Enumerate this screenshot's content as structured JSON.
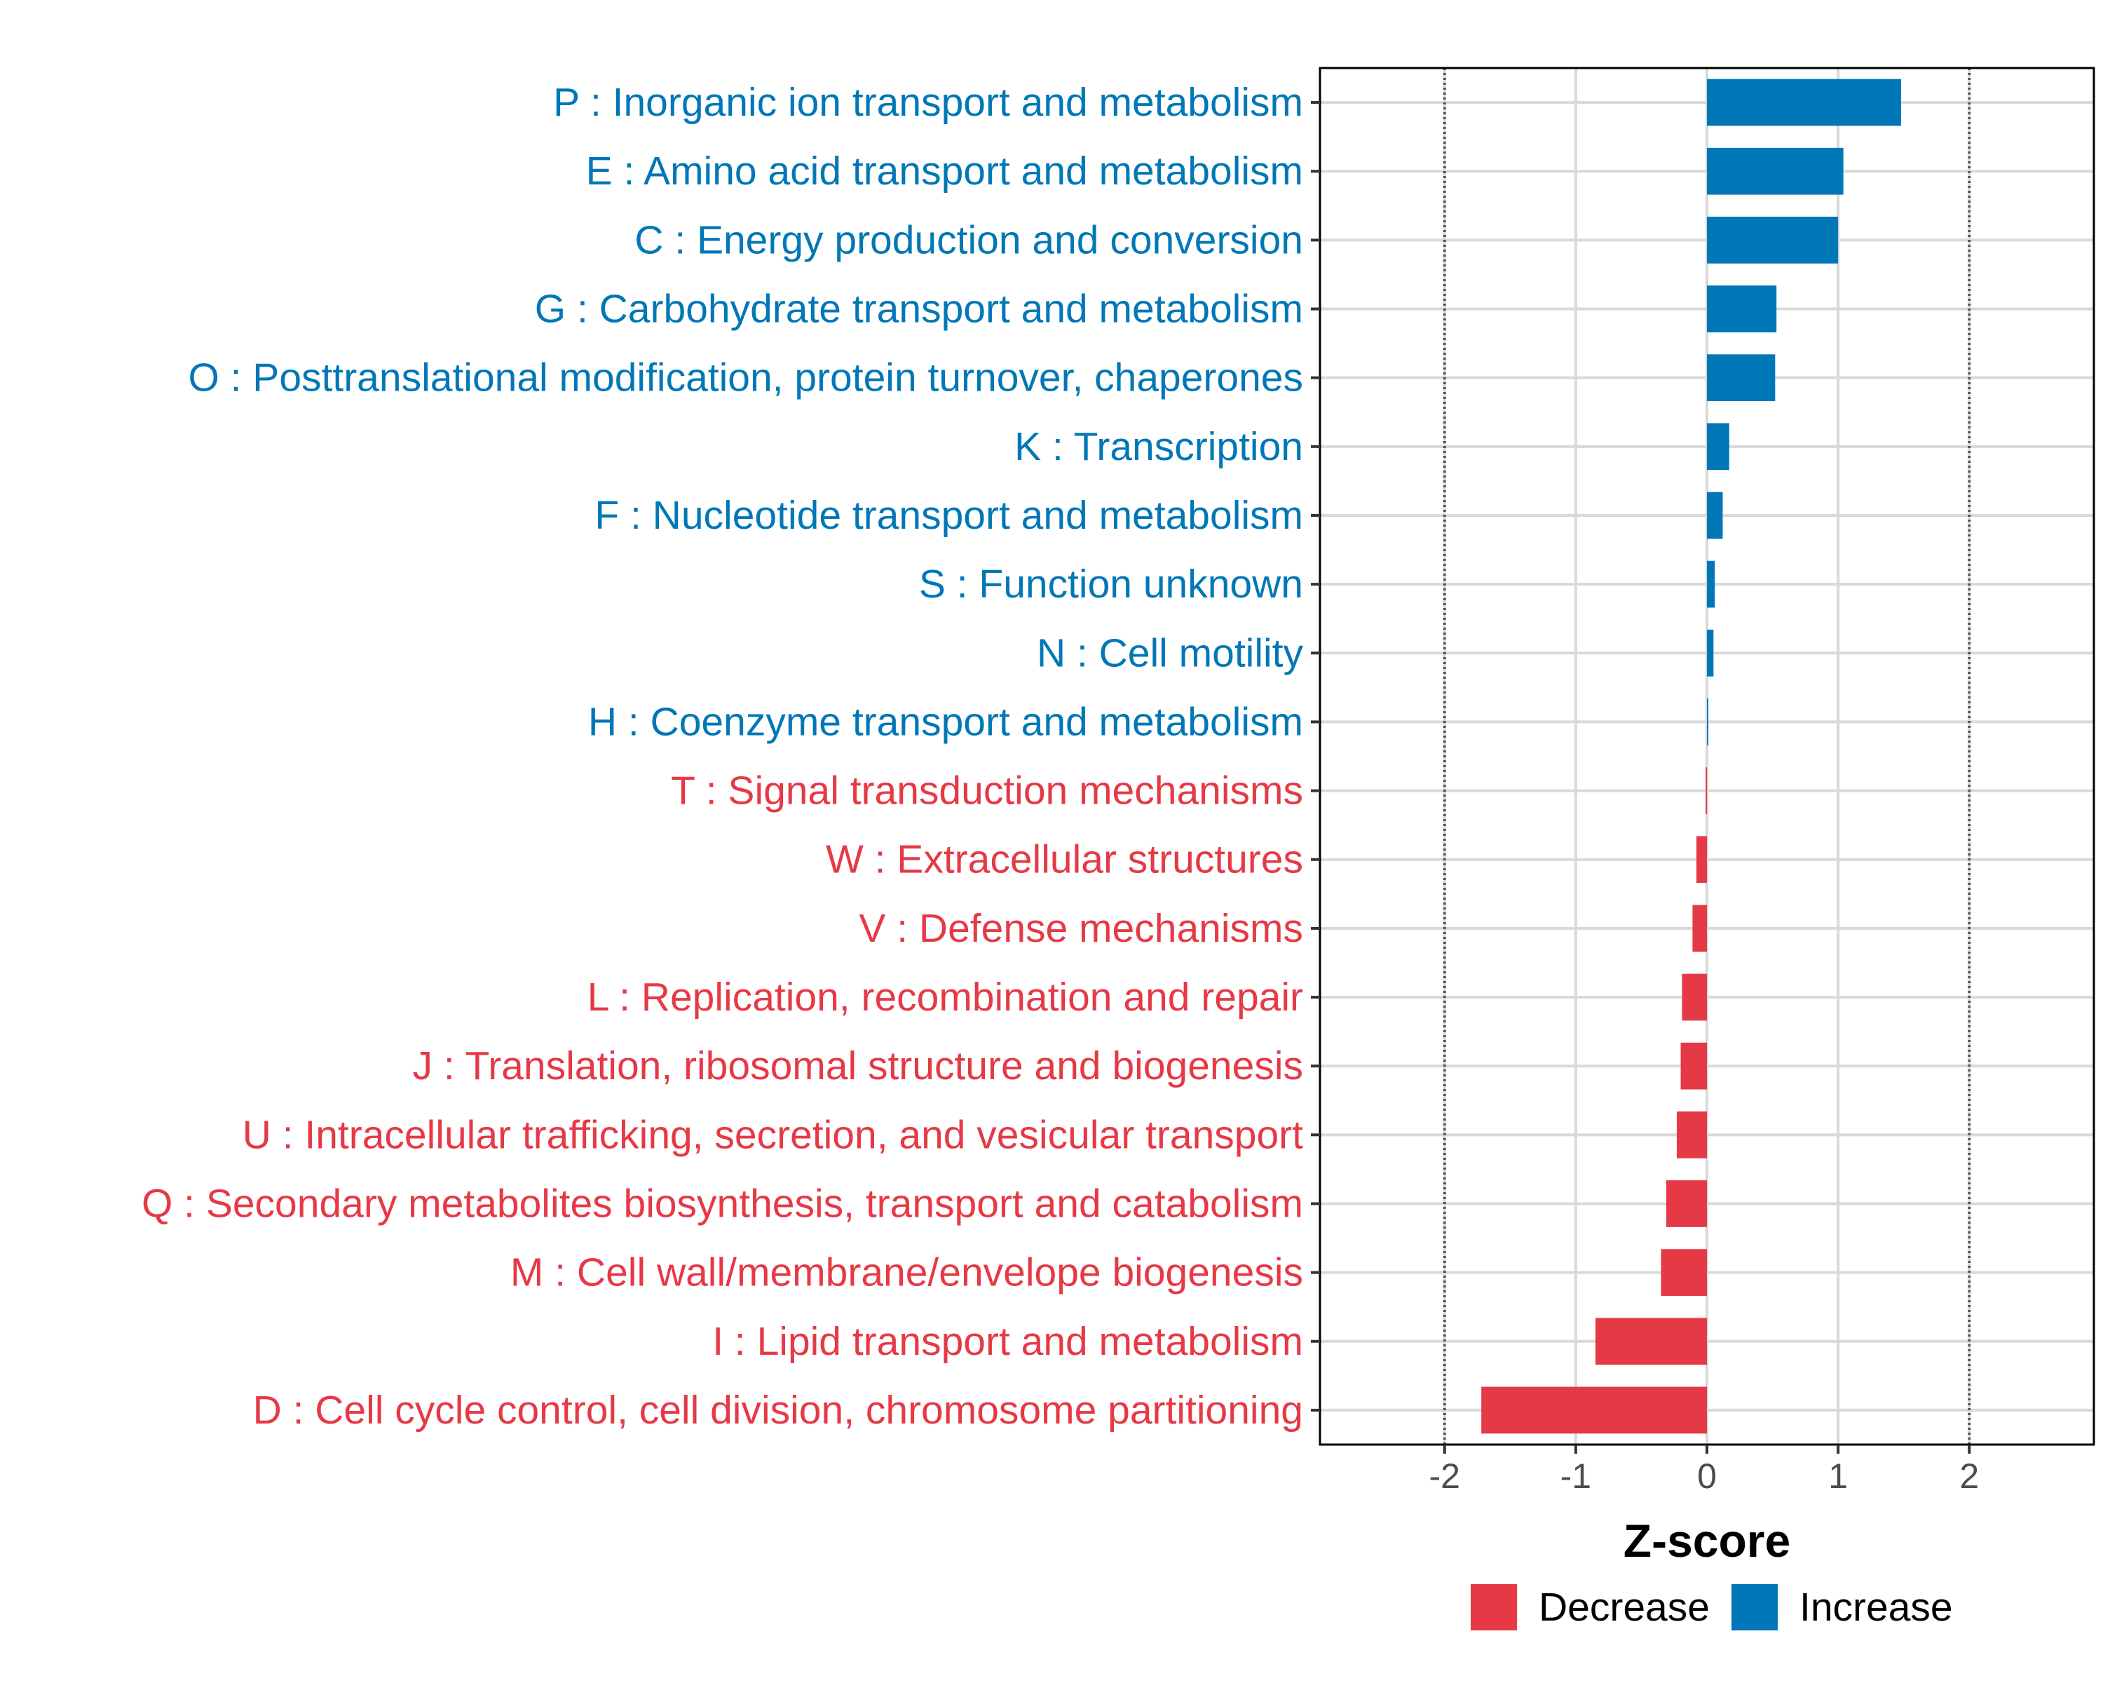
{
  "chart_data": {
    "type": "bar",
    "orientation": "horizontal",
    "xlabel": "Z-score",
    "ylabel": "",
    "xlim": [
      -2.95,
      2.95
    ],
    "xticks": [
      -2,
      -1,
      0,
      1,
      2
    ],
    "xtick_labels": [
      "-2",
      "-1",
      "0",
      "1",
      "2"
    ],
    "reference_lines": [
      -2,
      2
    ],
    "colors": {
      "Decrease": "#E63946",
      "Increase": "#0077B6"
    },
    "legend": {
      "placement": "bottom",
      "entries": [
        {
          "name": "Decrease",
          "color": "#E63946"
        },
        {
          "name": "Increase",
          "color": "#0077B6"
        }
      ]
    },
    "categories": [
      "P : Inorganic ion transport and metabolism",
      "E : Amino acid transport and metabolism",
      "C : Energy production and conversion",
      "G : Carbohydrate transport and metabolism",
      "O : Posttranslational modification, protein turnover, chaperones",
      "K : Transcription",
      "F : Nucleotide transport and metabolism",
      "S : Function unknown",
      "N : Cell motility",
      "H : Coenzyme transport and metabolism",
      "T : Signal transduction mechanisms",
      "W : Extracellular structures",
      "V : Defense mechanisms",
      "L : Replication, recombination and repair",
      "J : Translation, ribosomal structure and biogenesis",
      "U : Intracellular trafficking, secretion, and vesicular transport",
      "Q : Secondary metabolites biosynthesis, transport and catabolism",
      "M : Cell wall/membrane/envelope biogenesis",
      "I : Lipid transport and metabolism",
      "D : Cell cycle control, cell division, chromosome partitioning"
    ],
    "values": [
      1.48,
      1.04,
      1.0,
      0.53,
      0.52,
      0.17,
      0.12,
      0.06,
      0.05,
      0.01,
      -0.01,
      -0.08,
      -0.11,
      -0.19,
      -0.2,
      -0.23,
      -0.31,
      -0.35,
      -0.85,
      -1.72
    ],
    "groups": [
      "Increase",
      "Increase",
      "Increase",
      "Increase",
      "Increase",
      "Increase",
      "Increase",
      "Increase",
      "Increase",
      "Increase",
      "Decrease",
      "Decrease",
      "Decrease",
      "Decrease",
      "Decrease",
      "Decrease",
      "Decrease",
      "Decrease",
      "Decrease",
      "Decrease"
    ]
  }
}
